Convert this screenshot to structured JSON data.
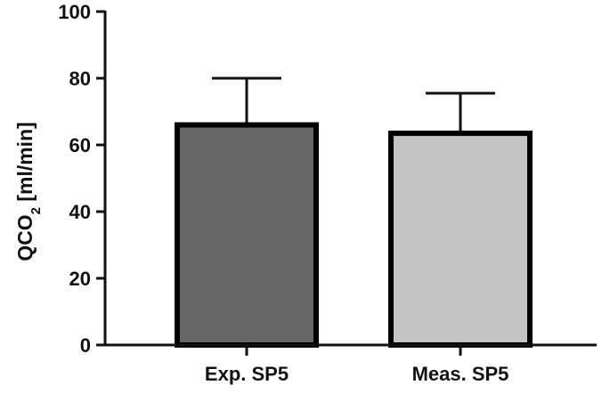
{
  "chart_data": {
    "type": "bar",
    "categories": [
      "Exp. SP5",
      "Meas. SP5"
    ],
    "values": [
      66,
      63.5
    ],
    "error_upper": [
      80,
      75.5
    ],
    "ylim": [
      0,
      100
    ],
    "yticks": [
      "0",
      "20",
      "40",
      "60",
      "80",
      "100"
    ],
    "ylabel": "QCO",
    "ylabel_subscript": "2",
    "ylabel_unit": " [ml/min]",
    "xlabel": "",
    "title": "",
    "grid": false,
    "legend": "none",
    "bar_colors": [
      "#666666",
      "#c4c4c4"
    ],
    "edge_color": "#000000"
  }
}
